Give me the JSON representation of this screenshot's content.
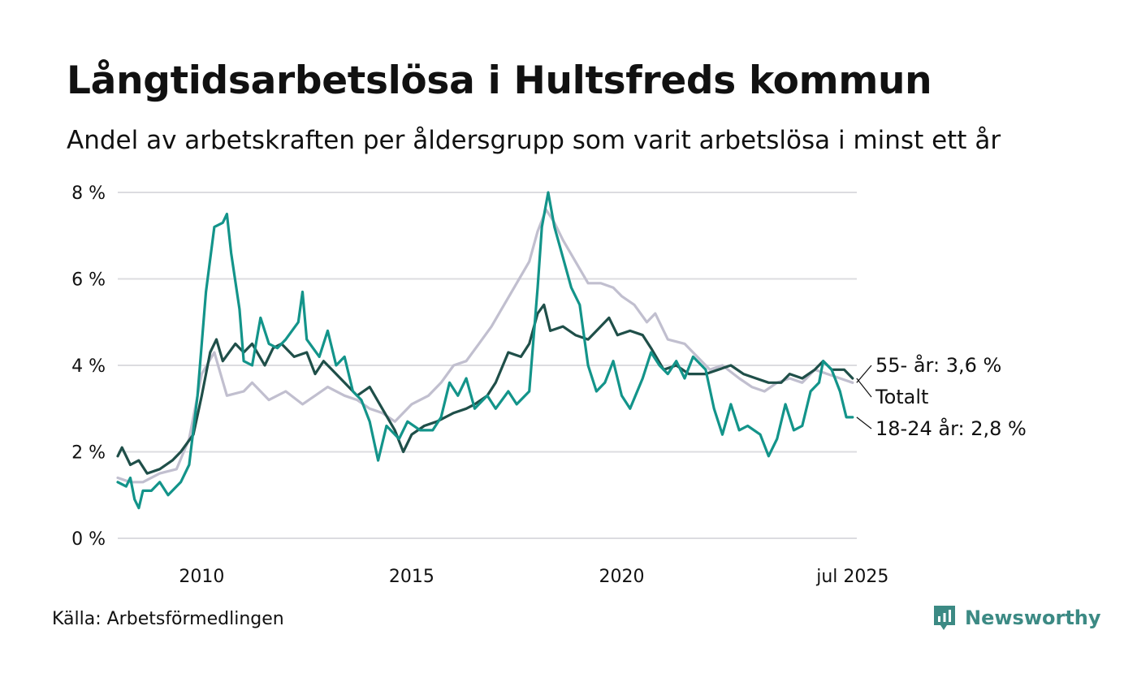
{
  "title": "Långtidsarbetslösa i Hultsfreds kommun",
  "subtitle": "Andel av arbetskraften per åldersgrupp som varit arbetslösa i minst ett år",
  "source": "Källa: Arbetsförmedlingen",
  "brand": {
    "name": "Newsworthy",
    "icon": "newsworthy-logo-icon",
    "color": "#3c8a84"
  },
  "chart_data": {
    "type": "line",
    "grid": true,
    "ylim": [
      0,
      8
    ],
    "yticks": [
      0,
      2,
      4,
      6,
      8
    ],
    "ytick_labels": [
      "0 %",
      "2 %",
      "4 %",
      "6 %",
      "8 %"
    ],
    "xlim": [
      2008.0,
      2025.6
    ],
    "xticks": [
      2010,
      2015,
      2020,
      2025.5
    ],
    "xtick_labels": [
      "2010",
      "2015",
      "2020",
      "jul 2025"
    ],
    "series": [
      {
        "key": "elder",
        "label": "55- år: 3,6 %",
        "color": "#c1bfcf",
        "points": [
          [
            2008.0,
            1.4
          ],
          [
            2008.3,
            1.3
          ],
          [
            2008.6,
            1.3
          ],
          [
            2009.0,
            1.5
          ],
          [
            2009.4,
            1.6
          ],
          [
            2009.7,
            2.3
          ],
          [
            2010.0,
            3.8
          ],
          [
            2010.3,
            4.3
          ],
          [
            2010.6,
            3.3
          ],
          [
            2011.0,
            3.4
          ],
          [
            2011.2,
            3.6
          ],
          [
            2011.6,
            3.2
          ],
          [
            2012.0,
            3.4
          ],
          [
            2012.4,
            3.1
          ],
          [
            2012.7,
            3.3
          ],
          [
            2013.0,
            3.5
          ],
          [
            2013.4,
            3.3
          ],
          [
            2013.7,
            3.2
          ],
          [
            2014.0,
            3.0
          ],
          [
            2014.3,
            2.9
          ],
          [
            2014.6,
            2.7
          ],
          [
            2015.0,
            3.1
          ],
          [
            2015.4,
            3.3
          ],
          [
            2015.7,
            3.6
          ],
          [
            2016.0,
            4.0
          ],
          [
            2016.3,
            4.1
          ],
          [
            2016.6,
            4.5
          ],
          [
            2016.9,
            4.9
          ],
          [
            2017.2,
            5.4
          ],
          [
            2017.5,
            5.9
          ],
          [
            2017.8,
            6.4
          ],
          [
            2018.0,
            7.1
          ],
          [
            2018.2,
            7.6
          ],
          [
            2018.4,
            7.3
          ],
          [
            2018.6,
            6.9
          ],
          [
            2018.9,
            6.4
          ],
          [
            2019.2,
            5.9
          ],
          [
            2019.5,
            5.9
          ],
          [
            2019.8,
            5.8
          ],
          [
            2020.0,
            5.6
          ],
          [
            2020.3,
            5.4
          ],
          [
            2020.6,
            5.0
          ],
          [
            2020.8,
            5.2
          ],
          [
            2021.1,
            4.6
          ],
          [
            2021.5,
            4.5
          ],
          [
            2021.8,
            4.2
          ],
          [
            2022.1,
            3.9
          ],
          [
            2022.4,
            4.0
          ],
          [
            2022.8,
            3.7
          ],
          [
            2023.1,
            3.5
          ],
          [
            2023.4,
            3.4
          ],
          [
            2023.7,
            3.6
          ],
          [
            2024.0,
            3.7
          ],
          [
            2024.3,
            3.6
          ],
          [
            2024.6,
            3.9
          ],
          [
            2024.9,
            3.8
          ],
          [
            2025.2,
            3.7
          ],
          [
            2025.5,
            3.6
          ]
        ]
      },
      {
        "key": "total",
        "label": "Totalt",
        "color": "#1f4f49",
        "points": [
          [
            2008.0,
            1.9
          ],
          [
            2008.1,
            2.1
          ],
          [
            2008.3,
            1.7
          ],
          [
            2008.5,
            1.8
          ],
          [
            2008.7,
            1.5
          ],
          [
            2009.0,
            1.6
          ],
          [
            2009.3,
            1.8
          ],
          [
            2009.5,
            2.0
          ],
          [
            2009.8,
            2.4
          ],
          [
            2010.0,
            3.3
          ],
          [
            2010.2,
            4.3
          ],
          [
            2010.35,
            4.6
          ],
          [
            2010.5,
            4.1
          ],
          [
            2010.8,
            4.5
          ],
          [
            2011.0,
            4.3
          ],
          [
            2011.2,
            4.5
          ],
          [
            2011.5,
            4.0
          ],
          [
            2011.7,
            4.4
          ],
          [
            2011.9,
            4.5
          ],
          [
            2012.2,
            4.2
          ],
          [
            2012.5,
            4.3
          ],
          [
            2012.7,
            3.8
          ],
          [
            2012.9,
            4.1
          ],
          [
            2013.1,
            3.9
          ],
          [
            2013.4,
            3.6
          ],
          [
            2013.7,
            3.3
          ],
          [
            2014.0,
            3.5
          ],
          [
            2014.3,
            3.0
          ],
          [
            2014.6,
            2.5
          ],
          [
            2014.8,
            2.0
          ],
          [
            2015.0,
            2.4
          ],
          [
            2015.3,
            2.6
          ],
          [
            2015.6,
            2.7
          ],
          [
            2016.0,
            2.9
          ],
          [
            2016.3,
            3.0
          ],
          [
            2016.5,
            3.1
          ],
          [
            2016.8,
            3.3
          ],
          [
            2017.0,
            3.6
          ],
          [
            2017.3,
            4.3
          ],
          [
            2017.6,
            4.2
          ],
          [
            2017.8,
            4.5
          ],
          [
            2018.0,
            5.2
          ],
          [
            2018.15,
            5.4
          ],
          [
            2018.3,
            4.8
          ],
          [
            2018.6,
            4.9
          ],
          [
            2018.9,
            4.7
          ],
          [
            2019.2,
            4.6
          ],
          [
            2019.5,
            4.9
          ],
          [
            2019.7,
            5.1
          ],
          [
            2019.9,
            4.7
          ],
          [
            2020.2,
            4.8
          ],
          [
            2020.5,
            4.7
          ],
          [
            2020.7,
            4.4
          ],
          [
            2021.0,
            3.9
          ],
          [
            2021.3,
            4.0
          ],
          [
            2021.6,
            3.8
          ],
          [
            2022.0,
            3.8
          ],
          [
            2022.3,
            3.9
          ],
          [
            2022.6,
            4.0
          ],
          [
            2022.9,
            3.8
          ],
          [
            2023.2,
            3.7
          ],
          [
            2023.5,
            3.6
          ],
          [
            2023.8,
            3.6
          ],
          [
            2024.0,
            3.8
          ],
          [
            2024.3,
            3.7
          ],
          [
            2024.6,
            3.9
          ],
          [
            2024.8,
            4.1
          ],
          [
            2025.0,
            3.9
          ],
          [
            2025.3,
            3.9
          ],
          [
            2025.5,
            3.7
          ]
        ]
      },
      {
        "key": "young",
        "label": "18-24 år: 2,8 %",
        "color": "#13948a",
        "points": [
          [
            2008.0,
            1.3
          ],
          [
            2008.2,
            1.2
          ],
          [
            2008.3,
            1.4
          ],
          [
            2008.4,
            0.9
          ],
          [
            2008.5,
            0.7
          ],
          [
            2008.6,
            1.1
          ],
          [
            2008.8,
            1.1
          ],
          [
            2009.0,
            1.3
          ],
          [
            2009.2,
            1.0
          ],
          [
            2009.5,
            1.3
          ],
          [
            2009.7,
            1.7
          ],
          [
            2009.9,
            3.3
          ],
          [
            2010.1,
            5.7
          ],
          [
            2010.3,
            7.2
          ],
          [
            2010.5,
            7.3
          ],
          [
            2010.6,
            7.5
          ],
          [
            2010.7,
            6.6
          ],
          [
            2010.9,
            5.3
          ],
          [
            2011.0,
            4.1
          ],
          [
            2011.2,
            4.0
          ],
          [
            2011.4,
            5.1
          ],
          [
            2011.6,
            4.5
          ],
          [
            2011.8,
            4.4
          ],
          [
            2012.0,
            4.6
          ],
          [
            2012.3,
            5.0
          ],
          [
            2012.4,
            5.7
          ],
          [
            2012.5,
            4.6
          ],
          [
            2012.8,
            4.2
          ],
          [
            2013.0,
            4.8
          ],
          [
            2013.2,
            4.0
          ],
          [
            2013.4,
            4.2
          ],
          [
            2013.6,
            3.4
          ],
          [
            2013.8,
            3.2
          ],
          [
            2014.0,
            2.7
          ],
          [
            2014.2,
            1.8
          ],
          [
            2014.4,
            2.6
          ],
          [
            2014.7,
            2.3
          ],
          [
            2014.9,
            2.7
          ],
          [
            2015.2,
            2.5
          ],
          [
            2015.5,
            2.5
          ],
          [
            2015.7,
            2.8
          ],
          [
            2015.9,
            3.6
          ],
          [
            2016.1,
            3.3
          ],
          [
            2016.3,
            3.7
          ],
          [
            2016.5,
            3.0
          ],
          [
            2016.8,
            3.3
          ],
          [
            2017.0,
            3.0
          ],
          [
            2017.3,
            3.4
          ],
          [
            2017.5,
            3.1
          ],
          [
            2017.8,
            3.4
          ],
          [
            2018.0,
            5.8
          ],
          [
            2018.1,
            7.2
          ],
          [
            2018.25,
            8.0
          ],
          [
            2018.4,
            7.2
          ],
          [
            2018.6,
            6.5
          ],
          [
            2018.8,
            5.8
          ],
          [
            2019.0,
            5.4
          ],
          [
            2019.2,
            4.0
          ],
          [
            2019.4,
            3.4
          ],
          [
            2019.6,
            3.6
          ],
          [
            2019.8,
            4.1
          ],
          [
            2020.0,
            3.3
          ],
          [
            2020.2,
            3.0
          ],
          [
            2020.5,
            3.7
          ],
          [
            2020.7,
            4.3
          ],
          [
            2020.9,
            4.0
          ],
          [
            2021.1,
            3.8
          ],
          [
            2021.3,
            4.1
          ],
          [
            2021.5,
            3.7
          ],
          [
            2021.7,
            4.2
          ],
          [
            2022.0,
            3.9
          ],
          [
            2022.2,
            3.0
          ],
          [
            2022.4,
            2.4
          ],
          [
            2022.6,
            3.1
          ],
          [
            2022.8,
            2.5
          ],
          [
            2023.0,
            2.6
          ],
          [
            2023.3,
            2.4
          ],
          [
            2023.5,
            1.9
          ],
          [
            2023.7,
            2.3
          ],
          [
            2023.9,
            3.1
          ],
          [
            2024.1,
            2.5
          ],
          [
            2024.3,
            2.6
          ],
          [
            2024.5,
            3.4
          ],
          [
            2024.7,
            3.6
          ],
          [
            2024.8,
            4.1
          ],
          [
            2025.0,
            3.9
          ],
          [
            2025.2,
            3.4
          ],
          [
            2025.35,
            2.8
          ],
          [
            2025.5,
            2.8
          ]
        ]
      }
    ]
  }
}
